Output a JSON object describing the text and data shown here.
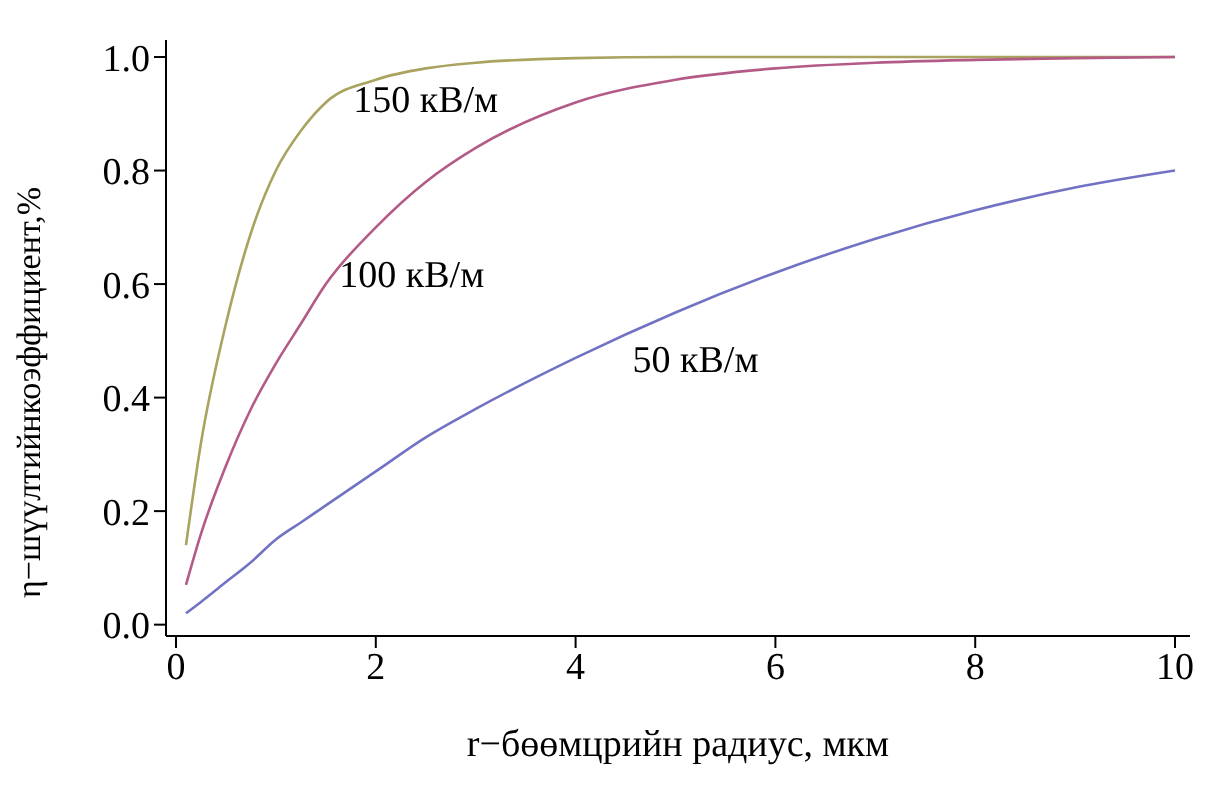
{
  "chart_data": {
    "type": "line",
    "xlabel": "r−бөөмцрийн радиус, мкм",
    "ylabel": "η−шүүлтийнкоэффициент,%",
    "x": [
      0.1,
      0.25,
      0.5,
      0.75,
      1,
      1.25,
      1.5,
      2,
      2.5,
      3,
      4,
      5,
      6,
      7,
      8,
      9,
      10
    ],
    "series": [
      {
        "name": "150 кВ/м",
        "color": "#a9a35f",
        "values": [
          0.14,
          0.32,
          0.53,
          0.69,
          0.8,
          0.87,
          0.92,
          0.96,
          0.98,
          0.99,
          0.998,
          1.0,
          1.0,
          1.0,
          1.0,
          1.0,
          1.0
        ]
      },
      {
        "name": "100 кВ/м",
        "color": "#b45a86",
        "values": [
          0.07,
          0.16,
          0.28,
          0.38,
          0.46,
          0.53,
          0.6,
          0.7,
          0.78,
          0.84,
          0.92,
          0.96,
          0.98,
          0.99,
          0.995,
          0.998,
          1.0
        ]
      },
      {
        "name": "50 кВ/м",
        "color": "#7272c4",
        "values": [
          0.02,
          0.04,
          0.075,
          0.11,
          0.15,
          0.18,
          0.21,
          0.27,
          0.33,
          0.38,
          0.47,
          0.55,
          0.62,
          0.68,
          0.73,
          0.77,
          0.8
        ]
      }
    ],
    "xlim": [
      -0.1,
      10.15
    ],
    "ylim": [
      -0.02,
      1.03
    ],
    "xticks": [
      0,
      2,
      4,
      6,
      8,
      10
    ],
    "yticks": [
      {
        "value": 0,
        "label": "0.0"
      },
      0.2,
      0.4,
      0.6,
      0.8,
      {
        "value": 1,
        "label": "1.0"
      }
    ],
    "grid": false,
    "legend": false,
    "marker": "none",
    "line_style": "solid"
  }
}
